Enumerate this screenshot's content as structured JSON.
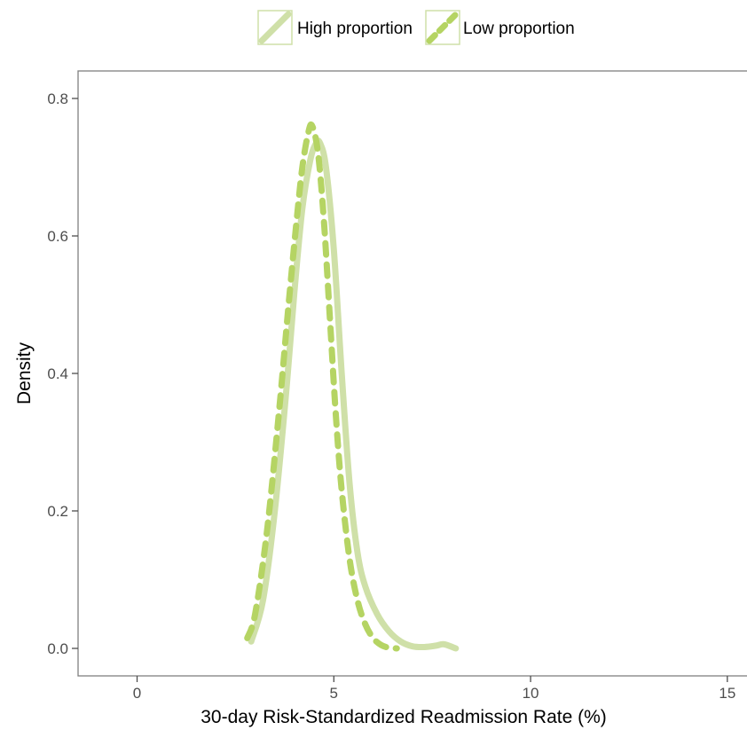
{
  "chart_data": {
    "type": "line",
    "title": "",
    "xlabel": "30-day Risk-Standardized Readmission Rate (%)",
    "ylabel": "Density",
    "xlim": [
      -1.5,
      15.5
    ],
    "ylim": [
      -0.04,
      0.84
    ],
    "x_ticks": [
      0,
      5,
      10,
      15
    ],
    "y_ticks": [
      0.0,
      0.2,
      0.4,
      0.6,
      0.8
    ],
    "x_tick_labels": [
      "0",
      "5",
      "10",
      "15"
    ],
    "y_tick_labels": [
      "0.0",
      "0.2",
      "0.4",
      "0.6",
      "0.8"
    ],
    "grid": false,
    "legend_position": "top",
    "series": [
      {
        "name": "High proportion",
        "line_style": "solid",
        "color": "#cfe0a8",
        "x": [
          2.9,
          3.2,
          3.5,
          3.8,
          4.0,
          4.2,
          4.4,
          4.55,
          4.65,
          4.8,
          5.0,
          5.2,
          5.4,
          5.6,
          5.8,
          6.1,
          6.4,
          6.7,
          7.0,
          7.3,
          7.6,
          7.8,
          8.1
        ],
        "y": [
          0.01,
          0.07,
          0.2,
          0.38,
          0.52,
          0.64,
          0.71,
          0.735,
          0.735,
          0.7,
          0.58,
          0.4,
          0.24,
          0.14,
          0.09,
          0.05,
          0.025,
          0.01,
          0.003,
          0.002,
          0.004,
          0.006,
          0.0
        ]
      },
      {
        "name": "Low proportion",
        "line_style": "dashed",
        "color": "#b5d463",
        "x": [
          2.8,
          3.0,
          3.3,
          3.6,
          3.85,
          4.05,
          4.2,
          4.35,
          4.45,
          4.6,
          4.75,
          4.9,
          5.05,
          5.2,
          5.4,
          5.6,
          5.8,
          6.0,
          6.2,
          6.4,
          6.6
        ],
        "y": [
          0.015,
          0.05,
          0.17,
          0.34,
          0.5,
          0.62,
          0.7,
          0.75,
          0.76,
          0.72,
          0.62,
          0.48,
          0.34,
          0.23,
          0.13,
          0.07,
          0.035,
          0.015,
          0.005,
          0.001,
          0.0
        ]
      }
    ]
  }
}
